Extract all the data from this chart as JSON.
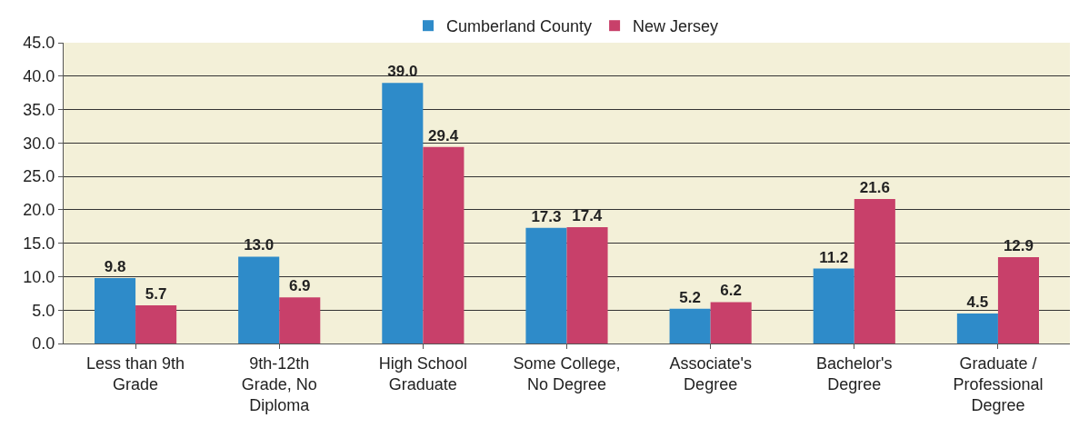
{
  "chart_data": {
    "type": "bar",
    "categories": [
      "Less than 9th Grade",
      "9th-12th Grade, No Diploma",
      "High School Graduate",
      "Some College, No Degree",
      "Associate's Degree",
      "Bachelor's Degree",
      "Graduate / Professional Degree"
    ],
    "series": [
      {
        "name": "Cumberland County",
        "color": "#2e8bc9",
        "values": [
          9.8,
          13.0,
          39.0,
          17.3,
          5.2,
          11.2,
          4.5
        ],
        "value_labels": [
          "9.8",
          "13.0",
          "39.0",
          "17.3",
          "5.2",
          "11.2",
          "4.5"
        ]
      },
      {
        "name": "New Jersey",
        "color": "#c8406a",
        "values": [
          5.7,
          6.9,
          29.4,
          17.4,
          6.2,
          21.6,
          12.9
        ],
        "value_labels": [
          "5.7",
          "6.9",
          "29.4",
          "17.4",
          "6.2",
          "21.6",
          "12.9"
        ]
      }
    ],
    "ylim": [
      0,
      45
    ],
    "yticks": [
      {
        "value": 0,
        "label": "0.0"
      },
      {
        "value": 5,
        "label": "5.0"
      },
      {
        "value": 10,
        "label": "10.0"
      },
      {
        "value": 15,
        "label": "15.0"
      },
      {
        "value": 20,
        "label": "20.0"
      },
      {
        "value": 25,
        "label": "25.0"
      },
      {
        "value": 30,
        "label": "30.0"
      },
      {
        "value": 35,
        "label": "35.0"
      },
      {
        "value": 40,
        "label": "40.0"
      },
      {
        "value": 45,
        "label": "45.0"
      }
    ],
    "grid": "y",
    "legend": "top"
  }
}
